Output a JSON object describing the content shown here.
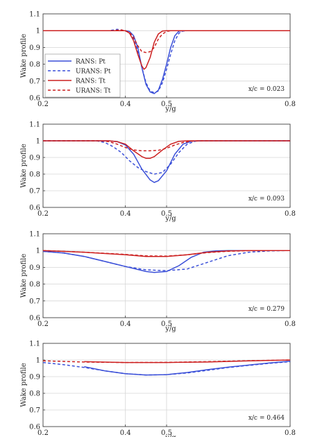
{
  "chart_data": [
    {
      "type": "line",
      "ylabel": "Wake profile",
      "xlabel": "y/g",
      "annotation": "x/c = 0.023",
      "xlim": [
        0.2,
        0.8
      ],
      "ylim": [
        0.6,
        1.1
      ],
      "xticks": [
        "0.2",
        "0.4",
        "0.5",
        "0.8"
      ],
      "yticks": [
        "0.6",
        "0.7",
        "0.8",
        "0.9",
        "1",
        "1.1"
      ],
      "grid": true,
      "legend": {
        "position": "left",
        "entries": [
          "RANS: Pt",
          "URANS: Pt",
          "RANS: Tt",
          "URANS: Tt"
        ]
      },
      "series": [
        {
          "name": "RANS: Pt",
          "color": "#3a4fd8",
          "dash": "solid",
          "points": [
            [
              0.2,
              1.0
            ],
            [
              0.4,
              1.0
            ],
            [
              0.41,
              0.995
            ],
            [
              0.42,
              0.97
            ],
            [
              0.43,
              0.9
            ],
            [
              0.44,
              0.78
            ],
            [
              0.45,
              0.68
            ],
            [
              0.46,
              0.635
            ],
            [
              0.47,
              0.625
            ],
            [
              0.48,
              0.645
            ],
            [
              0.49,
              0.71
            ],
            [
              0.5,
              0.8
            ],
            [
              0.51,
              0.9
            ],
            [
              0.52,
              0.97
            ],
            [
              0.53,
              0.997
            ],
            [
              0.54,
              1.0
            ],
            [
              0.8,
              1.0
            ]
          ]
        },
        {
          "name": "URANS: Pt",
          "color": "#3a4fd8",
          "dash": "dash",
          "points": [
            [
              0.2,
              1.0
            ],
            [
              0.36,
              1.0
            ],
            [
              0.38,
              1.008
            ],
            [
              0.4,
              1.0
            ],
            [
              0.41,
              0.985
            ],
            [
              0.42,
              0.95
            ],
            [
              0.43,
              0.88
            ],
            [
              0.44,
              0.78
            ],
            [
              0.45,
              0.69
            ],
            [
              0.46,
              0.64
            ],
            [
              0.47,
              0.63
            ],
            [
              0.48,
              0.64
            ],
            [
              0.49,
              0.69
            ],
            [
              0.5,
              0.77
            ],
            [
              0.51,
              0.86
            ],
            [
              0.52,
              0.94
            ],
            [
              0.53,
              0.985
            ],
            [
              0.54,
              0.998
            ],
            [
              0.55,
              1.0
            ],
            [
              0.8,
              1.0
            ]
          ]
        },
        {
          "name": "RANS: Tt",
          "color": "#cc1f1f",
          "dash": "solid",
          "points": [
            [
              0.2,
              1.0
            ],
            [
              0.4,
              1.0
            ],
            [
              0.41,
              0.985
            ],
            [
              0.42,
              0.94
            ],
            [
              0.43,
              0.86
            ],
            [
              0.44,
              0.79
            ],
            [
              0.445,
              0.77
            ],
            [
              0.45,
              0.78
            ],
            [
              0.46,
              0.84
            ],
            [
              0.47,
              0.93
            ],
            [
              0.48,
              0.98
            ],
            [
              0.49,
              0.998
            ],
            [
              0.5,
              1.0
            ],
            [
              0.8,
              1.0
            ]
          ]
        },
        {
          "name": "URANS: Tt",
          "color": "#cc1f1f",
          "dash": "dash",
          "points": [
            [
              0.2,
              1.0
            ],
            [
              0.37,
              1.0
            ],
            [
              0.39,
              1.005
            ],
            [
              0.41,
              0.99
            ],
            [
              0.42,
              0.96
            ],
            [
              0.43,
              0.91
            ],
            [
              0.44,
              0.875
            ],
            [
              0.45,
              0.87
            ],
            [
              0.46,
              0.875
            ],
            [
              0.47,
              0.9
            ],
            [
              0.48,
              0.95
            ],
            [
              0.49,
              0.98
            ],
            [
              0.5,
              0.995
            ],
            [
              0.51,
              1.0
            ],
            [
              0.8,
              1.0
            ]
          ]
        }
      ]
    },
    {
      "type": "line",
      "ylabel": "Wake profile",
      "xlabel": "y/g",
      "annotation": "x/c = 0.093",
      "xlim": [
        0.2,
        0.8
      ],
      "ylim": [
        0.6,
        1.1
      ],
      "xticks": [
        "0.2",
        "0.4",
        "0.5",
        "0.8"
      ],
      "yticks": [
        "0.6",
        "0.7",
        "0.8",
        "0.9",
        "1",
        "1.1"
      ],
      "grid": true,
      "series": [
        {
          "name": "RANS: Pt",
          "color": "#3a4fd8",
          "dash": "solid",
          "points": [
            [
              0.2,
              1.0
            ],
            [
              0.36,
              1.0
            ],
            [
              0.38,
              0.995
            ],
            [
              0.4,
              0.975
            ],
            [
              0.42,
              0.92
            ],
            [
              0.44,
              0.83
            ],
            [
              0.46,
              0.765
            ],
            [
              0.47,
              0.75
            ],
            [
              0.48,
              0.76
            ],
            [
              0.5,
              0.82
            ],
            [
              0.52,
              0.92
            ],
            [
              0.54,
              0.98
            ],
            [
              0.56,
              0.998
            ],
            [
              0.58,
              1.0
            ],
            [
              0.8,
              1.0
            ]
          ]
        },
        {
          "name": "URANS: Pt",
          "color": "#3a4fd8",
          "dash": "dash",
          "points": [
            [
              0.2,
              1.0
            ],
            [
              0.33,
              1.0
            ],
            [
              0.35,
              0.99
            ],
            [
              0.37,
              0.965
            ],
            [
              0.39,
              0.93
            ],
            [
              0.41,
              0.88
            ],
            [
              0.43,
              0.84
            ],
            [
              0.45,
              0.815
            ],
            [
              0.47,
              0.8
            ],
            [
              0.49,
              0.81
            ],
            [
              0.51,
              0.86
            ],
            [
              0.53,
              0.93
            ],
            [
              0.55,
              0.98
            ],
            [
              0.57,
              0.998
            ],
            [
              0.59,
              1.0
            ],
            [
              0.8,
              1.0
            ]
          ]
        },
        {
          "name": "RANS: Tt",
          "color": "#cc1f1f",
          "dash": "solid",
          "points": [
            [
              0.2,
              1.0
            ],
            [
              0.36,
              1.0
            ],
            [
              0.38,
              0.995
            ],
            [
              0.4,
              0.98
            ],
            [
              0.42,
              0.94
            ],
            [
              0.44,
              0.905
            ],
            [
              0.45,
              0.895
            ],
            [
              0.46,
              0.895
            ],
            [
              0.47,
              0.905
            ],
            [
              0.49,
              0.945
            ],
            [
              0.51,
              0.98
            ],
            [
              0.53,
              0.997
            ],
            [
              0.55,
              1.0
            ],
            [
              0.8,
              1.0
            ]
          ]
        },
        {
          "name": "URANS: Tt",
          "color": "#cc1f1f",
          "dash": "dash",
          "points": [
            [
              0.2,
              1.0
            ],
            [
              0.34,
              1.0
            ],
            [
              0.36,
              0.995
            ],
            [
              0.38,
              0.98
            ],
            [
              0.4,
              0.96
            ],
            [
              0.42,
              0.945
            ],
            [
              0.44,
              0.94
            ],
            [
              0.46,
              0.94
            ],
            [
              0.48,
              0.943
            ],
            [
              0.5,
              0.955
            ],
            [
              0.52,
              0.975
            ],
            [
              0.54,
              0.99
            ],
            [
              0.56,
              0.998
            ],
            [
              0.58,
              1.0
            ],
            [
              0.8,
              1.0
            ]
          ]
        }
      ]
    },
    {
      "type": "line",
      "ylabel": "Wake profile",
      "xlabel": "y/g",
      "annotation": "x/c = 0.279",
      "xlim": [
        0.2,
        0.8
      ],
      "ylim": [
        0.6,
        1.1
      ],
      "xticks": [
        "0.2",
        "0.4",
        "0.5",
        "0.8"
      ],
      "yticks": [
        "0.6",
        "0.7",
        "0.8",
        "0.9",
        "1",
        "1.1"
      ],
      "grid": true,
      "series": [
        {
          "name": "RANS: Pt",
          "color": "#3a4fd8",
          "dash": "solid",
          "points": [
            [
              0.2,
              0.995
            ],
            [
              0.25,
              0.985
            ],
            [
              0.3,
              0.965
            ],
            [
              0.35,
              0.935
            ],
            [
              0.4,
              0.905
            ],
            [
              0.45,
              0.875
            ],
            [
              0.47,
              0.87
            ],
            [
              0.5,
              0.875
            ],
            [
              0.53,
              0.91
            ],
            [
              0.56,
              0.96
            ],
            [
              0.59,
              0.99
            ],
            [
              0.62,
              0.998
            ],
            [
              0.65,
              1.0
            ],
            [
              0.8,
              1.0
            ]
          ]
        },
        {
          "name": "URANS: Pt",
          "color": "#3a4fd8",
          "dash": "dash",
          "points": [
            [
              0.2,
              0.995
            ],
            [
              0.25,
              0.985
            ],
            [
              0.3,
              0.965
            ],
            [
              0.35,
              0.935
            ],
            [
              0.4,
              0.905
            ],
            [
              0.45,
              0.885
            ],
            [
              0.5,
              0.88
            ],
            [
              0.55,
              0.89
            ],
            [
              0.6,
              0.93
            ],
            [
              0.65,
              0.97
            ],
            [
              0.7,
              0.99
            ],
            [
              0.75,
              0.998
            ],
            [
              0.8,
              1.0
            ]
          ]
        },
        {
          "name": "RANS: Tt",
          "color": "#cc1f1f",
          "dash": "solid",
          "points": [
            [
              0.2,
              1.0
            ],
            [
              0.3,
              0.99
            ],
            [
              0.4,
              0.975
            ],
            [
              0.45,
              0.965
            ],
            [
              0.5,
              0.965
            ],
            [
              0.55,
              0.975
            ],
            [
              0.6,
              0.99
            ],
            [
              0.65,
              0.998
            ],
            [
              0.7,
              1.0
            ],
            [
              0.8,
              1.0
            ]
          ]
        },
        {
          "name": "URANS: Tt",
          "color": "#cc1f1f",
          "dash": "dash",
          "points": [
            [
              0.2,
              1.0
            ],
            [
              0.3,
              0.99
            ],
            [
              0.4,
              0.977
            ],
            [
              0.45,
              0.968
            ],
            [
              0.5,
              0.967
            ],
            [
              0.55,
              0.975
            ],
            [
              0.6,
              0.988
            ],
            [
              0.65,
              0.996
            ],
            [
              0.7,
              0.999
            ],
            [
              0.8,
              1.0
            ]
          ]
        }
      ]
    },
    {
      "type": "line",
      "ylabel": "Wake profile",
      "xlabel": "y/g",
      "annotation": "x/c = 0.464",
      "xlim": [
        0.2,
        0.8
      ],
      "ylim": [
        0.6,
        1.1
      ],
      "xticks": [
        "0.2",
        "0.4",
        "0.5",
        "0.8"
      ],
      "yticks": [
        "0.6",
        "0.7",
        "0.8",
        "0.9",
        "1",
        "1.1"
      ],
      "grid": true,
      "series": [
        {
          "name": "RANS: Pt",
          "color": "#3a4fd8",
          "dash": "solid",
          "points": [
            [
              0.3,
              0.96
            ],
            [
              0.35,
              0.935
            ],
            [
              0.4,
              0.918
            ],
            [
              0.45,
              0.91
            ],
            [
              0.5,
              0.912
            ],
            [
              0.55,
              0.925
            ],
            [
              0.6,
              0.942
            ],
            [
              0.65,
              0.957
            ],
            [
              0.7,
              0.97
            ],
            [
              0.75,
              0.982
            ],
            [
              0.8,
              0.993
            ]
          ]
        },
        {
          "name": "URANS: Pt",
          "color": "#3a4fd8",
          "dash": "dash",
          "points": [
            [
              0.2,
              0.985
            ],
            [
              0.25,
              0.972
            ],
            [
              0.3,
              0.955
            ],
            [
              0.35,
              0.935
            ],
            [
              0.4,
              0.918
            ],
            [
              0.45,
              0.91
            ],
            [
              0.5,
              0.912
            ],
            [
              0.55,
              0.922
            ],
            [
              0.6,
              0.938
            ],
            [
              0.65,
              0.955
            ],
            [
              0.7,
              0.968
            ],
            [
              0.75,
              0.98
            ],
            [
              0.8,
              0.99
            ]
          ]
        },
        {
          "name": "RANS: Tt",
          "color": "#cc1f1f",
          "dash": "solid",
          "points": [
            [
              0.3,
              0.99
            ],
            [
              0.4,
              0.985
            ],
            [
              0.5,
              0.985
            ],
            [
              0.6,
              0.988
            ],
            [
              0.7,
              0.995
            ],
            [
              0.8,
              1.0
            ]
          ]
        },
        {
          "name": "URANS: Tt",
          "color": "#cc1f1f",
          "dash": "dash",
          "points": [
            [
              0.2,
              0.995
            ],
            [
              0.3,
              0.988
            ],
            [
              0.4,
              0.985
            ],
            [
              0.5,
              0.986
            ],
            [
              0.6,
              0.99
            ],
            [
              0.7,
              0.996
            ],
            [
              0.8,
              1.0
            ]
          ]
        }
      ]
    }
  ]
}
